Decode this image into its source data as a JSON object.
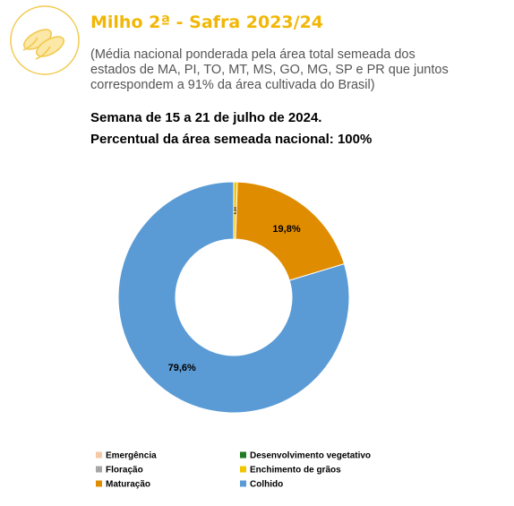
{
  "chart_data": {
    "type": "pie",
    "title": "Milho 2ª - Safra 2023/24",
    "subtitle": "(Média nacional ponderada pela área total semeada dos estados de MA, PI, TO, MT, MS, GO, MG, SP e PR que juntos correspondem a 91% da área cultivada do Brasil)",
    "week": "Semana de 15 a 21 de julho de 2024.",
    "coverage": "Percentual da área semeada nacional: 100%",
    "categories": [
      "Emergência",
      "Desenvolvimento vegetativo",
      "Floração",
      "Enchimento de grãos",
      "Maturação",
      "Colhido"
    ],
    "values": [
      0,
      0,
      0,
      0.5,
      19.8,
      79.6
    ],
    "value_labels": [
      null,
      null,
      null,
      "0,5%",
      "19,8%",
      "79,6%"
    ],
    "colors": [
      "#f6c9a6",
      "#1f7a22",
      "#a6a6a6",
      "#f2c500",
      "#e08c00",
      "#5b9bd5"
    ],
    "donut": true
  }
}
